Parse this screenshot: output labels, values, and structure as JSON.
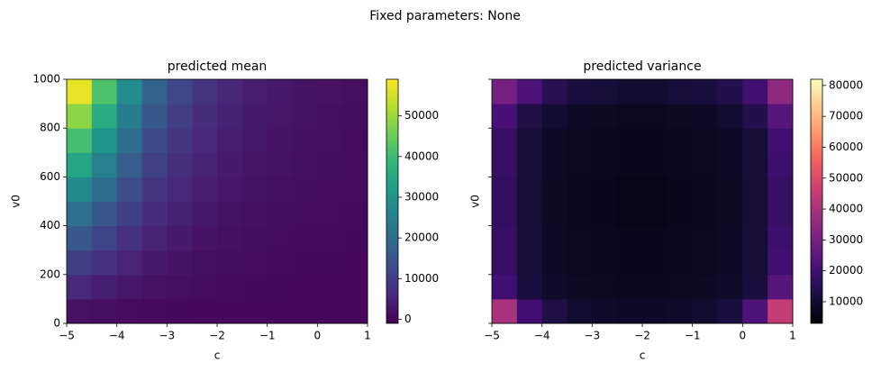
{
  "suptitle": "Fixed parameters: None",
  "chart_data": [
    {
      "type": "heatmap",
      "title": "predicted mean",
      "x_label": "c",
      "y_label": "v0",
      "xlim": [
        -5,
        1
      ],
      "ylim": [
        0,
        1000
      ],
      "xticks": [
        {
          "value": -5,
          "label": "−5"
        },
        {
          "value": -4,
          "label": "−4"
        },
        {
          "value": -3,
          "label": "−3"
        },
        {
          "value": -2,
          "label": "−2"
        },
        {
          "value": -1,
          "label": "−1"
        },
        0,
        1
      ],
      "yticks": [
        0,
        200,
        400,
        600,
        800,
        1000
      ],
      "ytick_labels_visible": true,
      "x": [
        -4.75,
        -4.25,
        -3.75,
        -3.25,
        -2.75,
        -2.25,
        -1.75,
        -1.25,
        -0.75,
        -0.25,
        0.25,
        0.75
      ],
      "y": [
        50,
        150,
        250,
        350,
        450,
        550,
        650,
        750,
        850,
        950
      ],
      "z": [
        [
          1710,
          1260,
          840,
          540,
          360,
          240,
          165,
          120,
          90,
          66,
          51,
          39
        ],
        [
          5700,
          4200,
          2800,
          1800,
          1200,
          800,
          550,
          400,
          300,
          220,
          170,
          130
        ],
        [
          10260,
          7560,
          5040,
          3240,
          2160,
          1440,
          990,
          720,
          540,
          396,
          306,
          234
        ],
        [
          15390,
          11340,
          7560,
          4860,
          3240,
          2160,
          1485,
          1080,
          810,
          594,
          459,
          351
        ],
        [
          21090,
          15540,
          10360,
          6660,
          4440,
          2960,
          2035,
          1480,
          1110,
          814,
          629,
          481
        ],
        [
          27360,
          20160,
          13440,
          8640,
          5760,
          3840,
          2640,
          1920,
          1440,
          1056,
          816,
          624
        ],
        [
          34200,
          25200,
          16800,
          10800,
          7200,
          4800,
          3300,
          2400,
          1800,
          1320,
          1020,
          780
        ],
        [
          41040,
          30240,
          20160,
          12960,
          8640,
          5760,
          3960,
          2880,
          2160,
          1584,
          1224,
          936
        ],
        [
          48450,
          35700,
          23800,
          15300,
          10200,
          6800,
          4675,
          3400,
          2550,
          1870,
          1445,
          1105
        ],
        [
          57000,
          42000,
          28000,
          18000,
          12000,
          8000,
          5500,
          4000,
          3000,
          2200,
          1700,
          1300
        ]
      ],
      "colorbar": {
        "colormap": "viridis",
        "lim": [
          -1000,
          59000
        ],
        "ticks": [
          0,
          10000,
          20000,
          30000,
          40000,
          50000
        ]
      }
    },
    {
      "type": "heatmap",
      "title": "predicted variance",
      "x_label": "c",
      "y_label": "v0",
      "xlim": [
        -5,
        1
      ],
      "ylim": [
        0,
        1000
      ],
      "xticks": [
        {
          "value": -5,
          "label": "−5"
        },
        {
          "value": -4,
          "label": "−4"
        },
        {
          "value": -3,
          "label": "−3"
        },
        {
          "value": -2,
          "label": "−2"
        },
        {
          "value": -1,
          "label": "−1"
        },
        0,
        1
      ],
      "yticks": [
        0,
        200,
        400,
        600,
        800,
        1000
      ],
      "ytick_labels_visible": false,
      "x": [
        -4.75,
        -4.25,
        -3.75,
        -3.25,
        -2.75,
        -2.25,
        -1.75,
        -1.25,
        -0.75,
        -0.25,
        0.25,
        0.75
      ],
      "y": [
        50,
        150,
        250,
        350,
        450,
        550,
        650,
        750,
        850,
        950
      ],
      "z": [
        [
          40000,
          20000,
          13000,
          10000,
          9000,
          8500,
          8500,
          9000,
          10000,
          12000,
          22000,
          45000
        ],
        [
          20000,
          12000,
          9000,
          8000,
          7500,
          7000,
          7000,
          7500,
          8000,
          9000,
          12000,
          24000
        ],
        [
          18000,
          11000,
          8500,
          7500,
          7000,
          6500,
          6500,
          7000,
          7500,
          8500,
          11000,
          20000
        ],
        [
          18000,
          11000,
          8500,
          7500,
          7000,
          6500,
          6500,
          7000,
          7500,
          8500,
          11000,
          19000
        ],
        [
          17000,
          10500,
          8000,
          7000,
          6500,
          6000,
          6000,
          6500,
          7000,
          8000,
          10500,
          18000
        ],
        [
          17000,
          10500,
          8000,
          7000,
          6500,
          6000,
          6000,
          6500,
          7000,
          8000,
          10500,
          18000
        ],
        [
          18000,
          11000,
          8500,
          7500,
          7000,
          6500,
          6500,
          7000,
          7500,
          8500,
          11000,
          19000
        ],
        [
          18000,
          11000,
          8500,
          7500,
          7000,
          6500,
          6500,
          7000,
          7500,
          8500,
          11000,
          20000
        ],
        [
          21000,
          13000,
          10000,
          8500,
          8000,
          7500,
          7500,
          8000,
          8500,
          10000,
          14000,
          24000
        ],
        [
          30000,
          22000,
          15000,
          12000,
          11000,
          10000,
          10000,
          11000,
          12000,
          14000,
          20000,
          35000
        ]
      ],
      "colorbar": {
        "colormap": "magma",
        "lim": [
          3000,
          82000
        ],
        "ticks": [
          10000,
          20000,
          30000,
          40000,
          50000,
          60000,
          70000,
          80000
        ]
      }
    }
  ]
}
